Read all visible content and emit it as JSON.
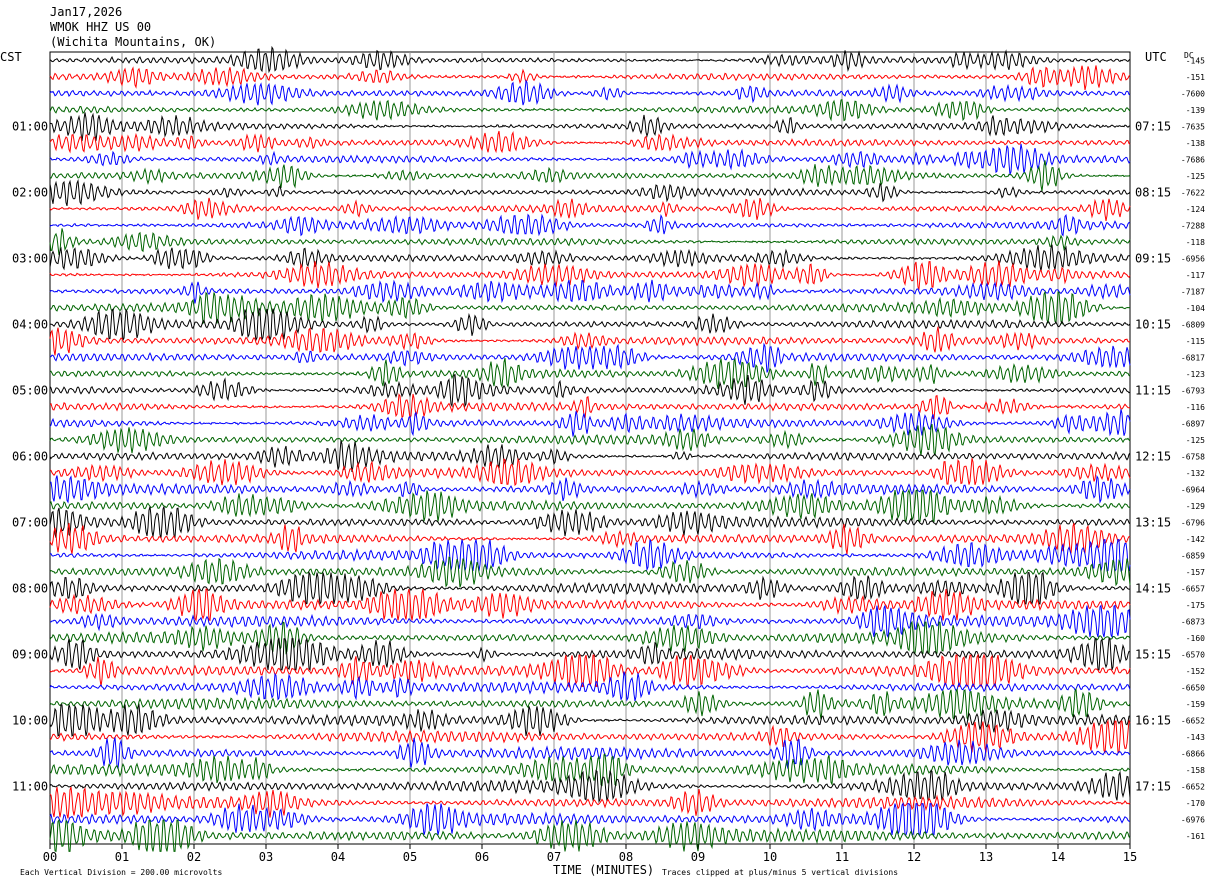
{
  "header": {
    "date": "Jan17,2026",
    "station": "WMOK HHZ US 00",
    "location": "(Wichita Mountains, OK)"
  },
  "axis_labels": {
    "left_tz": "CST",
    "right_tz": "UTC",
    "dc": "DC",
    "xlabel": "TIME (MINUTES)"
  },
  "footer": {
    "scale_note": "Each Vertical Division = 200.00 microvolts",
    "clip_note": "Traces clipped at plus/minus 5 vertical divisions"
  },
  "colors": {
    "trace_cycle": [
      "#000000",
      "#ff0000",
      "#0000ff",
      "#006400"
    ],
    "grid": "#999999",
    "frame": "#000000"
  },
  "chart_data": {
    "type": "line",
    "title": "WMOK HHZ US 00",
    "xlabel": "TIME (MINUTES)",
    "xlim": [
      0,
      15
    ],
    "x_ticks": [
      "00",
      "01",
      "02",
      "03",
      "04",
      "05",
      "06",
      "07",
      "08",
      "09",
      "10",
      "11",
      "12",
      "13",
      "14",
      "15"
    ],
    "rows_per_hour": 4,
    "row_count": 48,
    "left_hour_labels": [
      "01:00",
      "02:00",
      "03:00",
      "04:00",
      "05:00",
      "06:00",
      "07:00",
      "08:00",
      "09:00",
      "10:00",
      "11:00"
    ],
    "right_hour_labels": [
      "07:15",
      "08:15",
      "09:15",
      "10:15",
      "11:15",
      "12:15",
      "13:15",
      "14:15",
      "15:15",
      "16:15",
      "17:15"
    ],
    "hour_label_row_start": 4,
    "dc_offsets": [
      "-145",
      "-151",
      "-7600",
      "-139",
      "-7635",
      "-138",
      "-7686",
      "-125",
      "-7622",
      "-124",
      "-7288",
      "-118",
      "-6956",
      "-117",
      "-7187",
      "-104",
      "-6809",
      "-115",
      "-6817",
      "-123",
      "-6793",
      "-116",
      "-6897",
      "-125",
      "-6758",
      "-132",
      "-6964",
      "-129",
      "-6796",
      "-142",
      "-6859",
      "-157",
      "-6657",
      "-175",
      "-6873",
      "-160",
      "-6570",
      "-152",
      "-6650",
      "-159",
      "-6652",
      "-143",
      "-6866",
      "-158",
      "-6652",
      "-170",
      "-6976",
      "-161"
    ],
    "trace_amplitude_divisions": 5
  }
}
